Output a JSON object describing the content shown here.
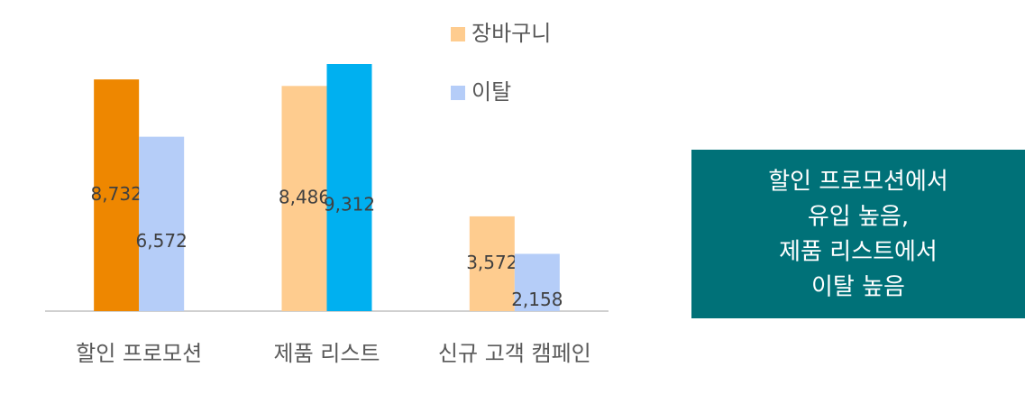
{
  "chart_data": {
    "type": "bar",
    "categories": [
      "할인 프로모션",
      "제품 리스트",
      "신규 고객 캠페인"
    ],
    "series": [
      {
        "name": "장바구니",
        "color": "#fecc8f",
        "colors": [
          "#ee8700",
          "#fecc8f",
          "#fecc8f"
        ],
        "values": [
          8732,
          8486,
          3572
        ],
        "value_labels": [
          "8,732",
          "8,486",
          "3,572"
        ]
      },
      {
        "name": "이탈",
        "color": "#b5cdf8",
        "colors": [
          "#b5cdf8",
          "#00b0f0",
          "#b5cdf8"
        ],
        "values": [
          6572,
          9312,
          2158
        ],
        "value_labels": [
          "6,572",
          "9,312",
          "2,158"
        ]
      }
    ],
    "annotation": [
      "할인 프로모션에서",
      "유입 높음,",
      "제품 리스트에서",
      "이탈 높음"
    ]
  }
}
